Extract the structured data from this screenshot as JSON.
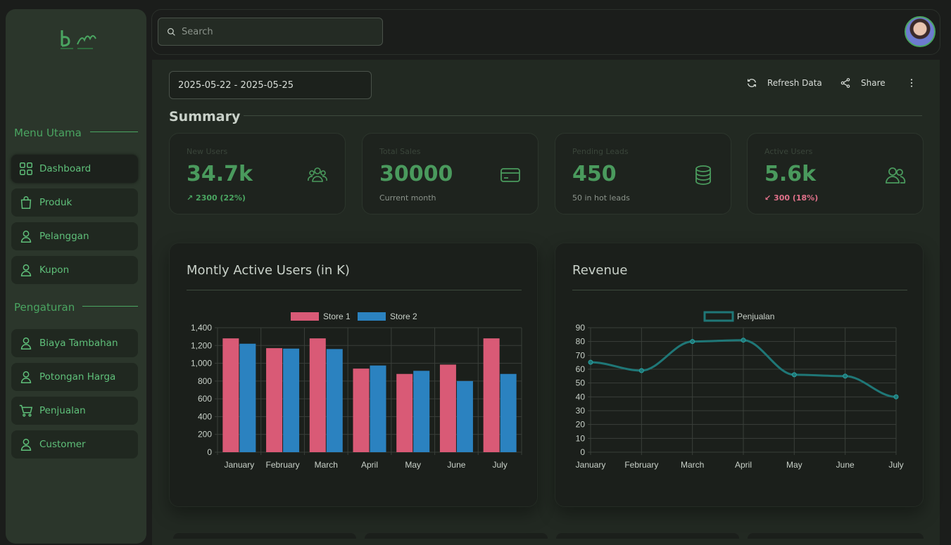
{
  "sidebar": {
    "menu_utama_label": "Menu Utama",
    "pengaturan_label": "Pengaturan",
    "main_items": [
      {
        "label": "Dashboard",
        "icon": "grid-icon"
      },
      {
        "label": "Produk",
        "icon": "shopping-bag-icon"
      },
      {
        "label": "Pelanggan",
        "icon": "user-icon"
      },
      {
        "label": "Kupon",
        "icon": "user-icon"
      }
    ],
    "settings_items": [
      {
        "label": "Biaya Tambahan",
        "icon": "user-icon"
      },
      {
        "label": "Potongan Harga",
        "icon": "user-icon"
      },
      {
        "label": "Penjualan",
        "icon": "cart-icon"
      },
      {
        "label": "Customer",
        "icon": "user-icon"
      }
    ]
  },
  "header": {
    "search_placeholder": "Search"
  },
  "toolbar": {
    "date_range": "2025-05-22 - 2025-05-25",
    "refresh_label": "Refresh Data",
    "share_label": "Share"
  },
  "summary": {
    "title": "Summary",
    "cards": [
      {
        "label": "New Users",
        "value": "34.7k",
        "sub": "↗ 2300 (22%)",
        "icon": "users-group-icon"
      },
      {
        "label": "Total Sales",
        "value": "30000",
        "sub": "Current month",
        "icon": "credit-card-icon"
      },
      {
        "label": "Pending Leads",
        "value": "450",
        "sub": "50 in hot leads",
        "icon": "database-icon"
      },
      {
        "label": "Active Users",
        "value": "5.6k",
        "sub": "↙ 300 (18%)",
        "icon": "users-icon"
      }
    ]
  },
  "colors": {
    "accent": "#4aa561",
    "store1": "#d95a76",
    "store2": "#2b82c0",
    "revenue_line": "#1f7777"
  },
  "chart_data": [
    {
      "type": "bar",
      "title": "Montly Active Users (in K)",
      "categories": [
        "January",
        "February",
        "March",
        "April",
        "May",
        "June",
        "July"
      ],
      "series": [
        {
          "name": "Store 1",
          "values": [
            1280,
            1170,
            1280,
            940,
            880,
            985,
            1280
          ]
        },
        {
          "name": "Store 2",
          "values": [
            1220,
            1165,
            1160,
            975,
            915,
            800,
            880
          ]
        }
      ],
      "ylim": [
        0,
        1400
      ],
      "yticks": [
        "0",
        "200",
        "400",
        "600",
        "800",
        "1,000",
        "1,200",
        "1,400"
      ],
      "grid": true,
      "legend": "top"
    },
    {
      "type": "line",
      "title": "Revenue",
      "categories": [
        "January",
        "February",
        "March",
        "April",
        "May",
        "June",
        "July"
      ],
      "series": [
        {
          "name": "Penjualan",
          "values": [
            65,
            59,
            80,
            81,
            56,
            55,
            40
          ]
        }
      ],
      "ylim": [
        0,
        90
      ],
      "yticks": [
        "0",
        "10",
        "20",
        "30",
        "40",
        "50",
        "60",
        "70",
        "80",
        "90"
      ],
      "grid": true,
      "legend": "top"
    }
  ]
}
